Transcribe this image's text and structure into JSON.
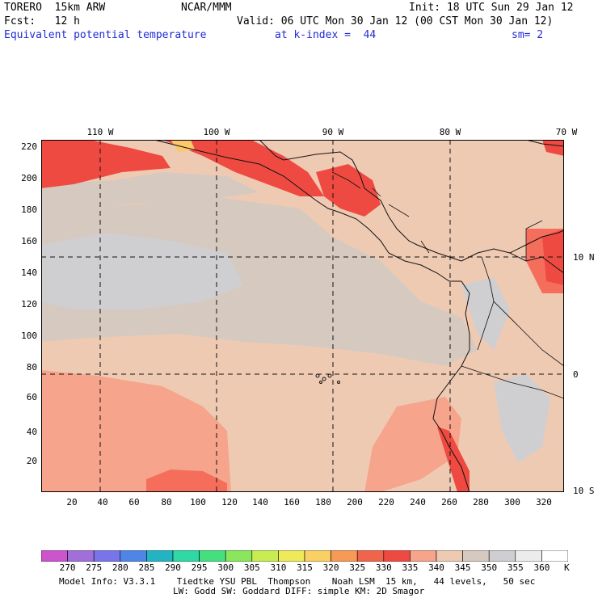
{
  "header": {
    "model": "TORERO  15km ARW",
    "org": "NCAR/MMM",
    "init": "Init: 18 UTC Sun 29 Jan 12",
    "fcst": "Fcst:   12 h",
    "valid": "Valid: 06 UTC Mon 30 Jan 12 (00 CST Mon 30 Jan 12)",
    "field": "Equivalent potential temperature",
    "level": "at k-index =  44",
    "smooth": "sm= 2"
  },
  "map": {
    "longitude_labels": [
      "110 W",
      "100 W",
      "90 W",
      "80 W",
      "70 W"
    ],
    "latitude_labels": [
      "10 N",
      "0",
      "10 S"
    ],
    "y_axis_ticks": [
      "20",
      "40",
      "60",
      "80",
      "100",
      "120",
      "140",
      "160",
      "180",
      "200",
      "220"
    ],
    "x_axis_ticks": [
      "20",
      "40",
      "60",
      "80",
      "100",
      "120",
      "140",
      "160",
      "180",
      "200",
      "220",
      "240",
      "260",
      "280",
      "300",
      "320"
    ],
    "colors": {
      "c330": "#ee4a42",
      "c335": "#f56e5c",
      "c340": "#f6a48c",
      "c345": "#efcab3",
      "c350": "#d6c9c0",
      "c355": "#cfcfd2",
      "c325": "#f7904f",
      "c320": "#fbc86a",
      "land_outline": "#111111"
    }
  },
  "legend": {
    "unit": "K",
    "labels": [
      "270",
      "275",
      "280",
      "285",
      "290",
      "295",
      "300",
      "305",
      "310",
      "315",
      "320",
      "325",
      "330",
      "335",
      "340",
      "345",
      "350",
      "355",
      "360"
    ],
    "colors": [
      "#cc55cc",
      "#a070d8",
      "#7a74ea",
      "#4f86e6",
      "#23b4c4",
      "#2fd8a4",
      "#44e080",
      "#8ae65c",
      "#c8ec52",
      "#eeea5a",
      "#fad064",
      "#f79a56",
      "#f0644c",
      "#ee4a42",
      "#f6a48c",
      "#efcab3",
      "#d6c9c0",
      "#cfcfd2",
      "#ececec",
      "#ffffff"
    ]
  },
  "footer": {
    "line1": "Model Info: V3.3.1    Tiedtke YSU PBL  Thompson    Noah LSM  15 km,   44 levels,   50 sec",
    "line2": "LW: Godd SW: Goddard DIFF: simple KM: 2D Smagor"
  }
}
